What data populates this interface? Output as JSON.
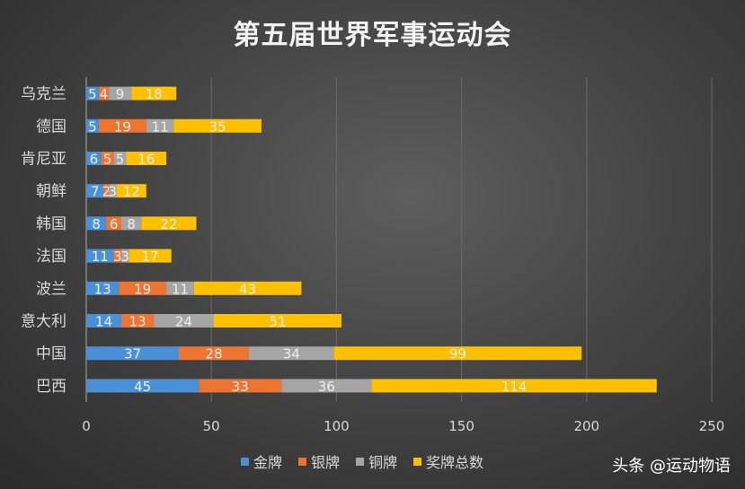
{
  "chart_data": {
    "type": "bar",
    "orientation": "horizontal",
    "stacked": true,
    "title": "第五届世界军事运动会",
    "categories": [
      "乌克兰",
      "德国",
      "肯尼亚",
      "朝鲜",
      "韩国",
      "法国",
      "波兰",
      "意大利",
      "中国",
      "巴西"
    ],
    "series": [
      {
        "name": "金牌",
        "color": "#4a90d6",
        "values": [
          5,
          5,
          6,
          7,
          8,
          11,
          13,
          14,
          37,
          45
        ]
      },
      {
        "name": "银牌",
        "color": "#ed7531",
        "values": [
          4,
          19,
          5,
          2,
          6,
          3,
          19,
          13,
          28,
          33
        ]
      },
      {
        "name": "铜牌",
        "color": "#a5a5a5",
        "values": [
          9,
          11,
          5,
          3,
          8,
          3,
          11,
          24,
          34,
          36
        ]
      },
      {
        "name": "奖牌总数",
        "color": "#ffc000",
        "values": [
          18,
          35,
          16,
          12,
          22,
          17,
          43,
          51,
          99,
          114
        ]
      }
    ],
    "xlim": [
      0,
      250
    ],
    "xticks": [
      "0",
      "50",
      "100",
      "150",
      "200",
      "250"
    ],
    "grid": true,
    "legend_position": "bottom"
  },
  "watermark": "头条 @运动物语"
}
